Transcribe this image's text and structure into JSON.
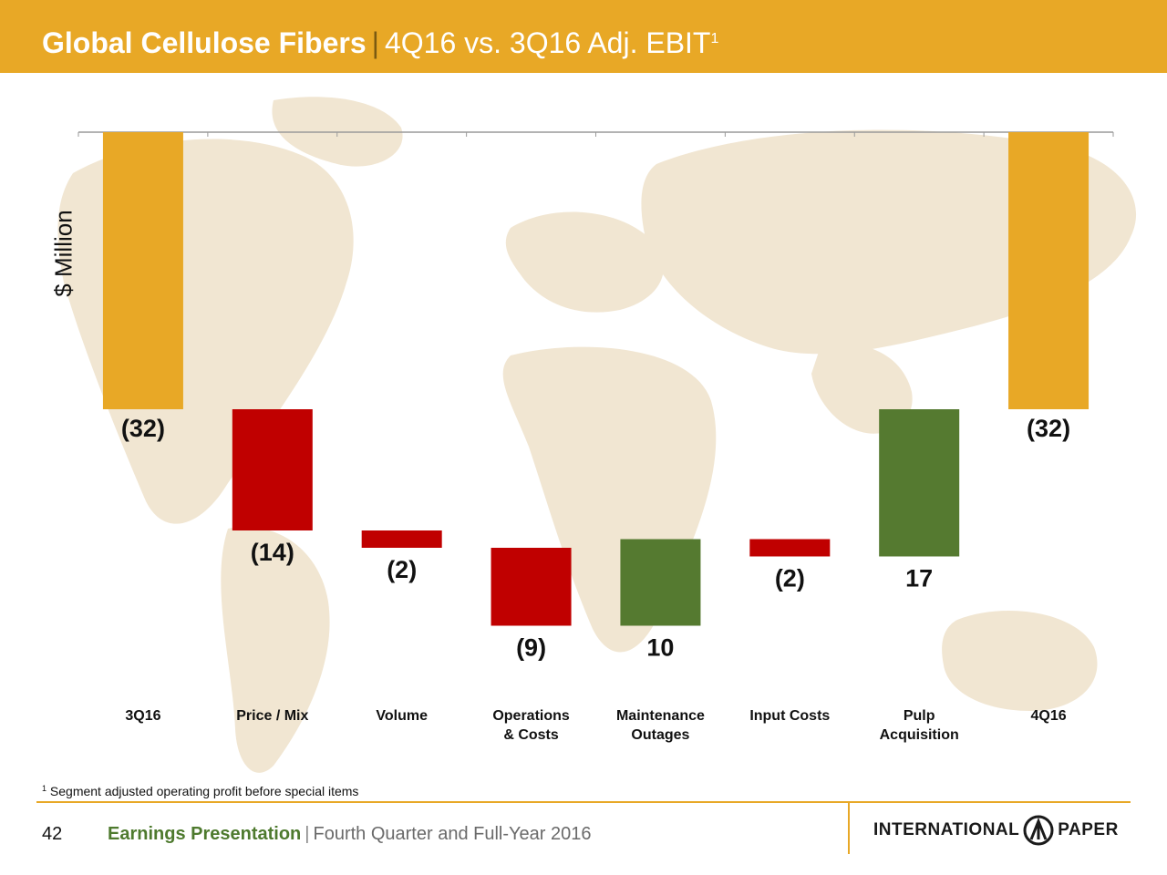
{
  "header": {
    "title_main": "Global Cellulose Fibers",
    "title_sep": "|",
    "title_sub": "4Q16 vs. 3Q16 Adj. EBIT",
    "title_sup": "1"
  },
  "chart_data": {
    "type": "bar",
    "subtype": "waterfall",
    "ylabel": "$ Million",
    "categories": [
      "3Q16",
      "Price / Mix",
      "Volume",
      "Operations & Costs",
      "Maintenance Outages",
      "Input Costs",
      "Pulp Acquisition",
      "4Q16"
    ],
    "category_lines": [
      [
        "3Q16"
      ],
      [
        "Price / Mix"
      ],
      [
        "Volume"
      ],
      [
        "Operations",
        "& Costs"
      ],
      [
        "Maintenance",
        "Outages"
      ],
      [
        "Input Costs"
      ],
      [
        "Pulp",
        "Acquisition"
      ],
      [
        "4Q16"
      ]
    ],
    "values": [
      -32,
      -14,
      -2,
      -9,
      10,
      -2,
      17,
      -32
    ],
    "kinds": [
      "total",
      "delta",
      "delta",
      "delta",
      "delta",
      "delta",
      "delta",
      "total"
    ],
    "value_labels": [
      "(32)",
      "(14)",
      "(2)",
      "(9)",
      "10",
      "(2)",
      "17",
      "(32)"
    ],
    "ylim": [
      -59,
      0
    ],
    "colors": {
      "total": "#e8a826",
      "increase": "#557a30",
      "decrease": "#c00000"
    }
  },
  "footnote": {
    "sup": "1",
    "text": "Segment adjusted operating profit before special items"
  },
  "footer": {
    "page_number": "42",
    "presentation": "Earnings Presentation",
    "sep": "|",
    "subtitle": "Fourth Quarter and Full-Year 2016",
    "logo_left": "INTERNATIONAL",
    "logo_right": "PAPER"
  }
}
